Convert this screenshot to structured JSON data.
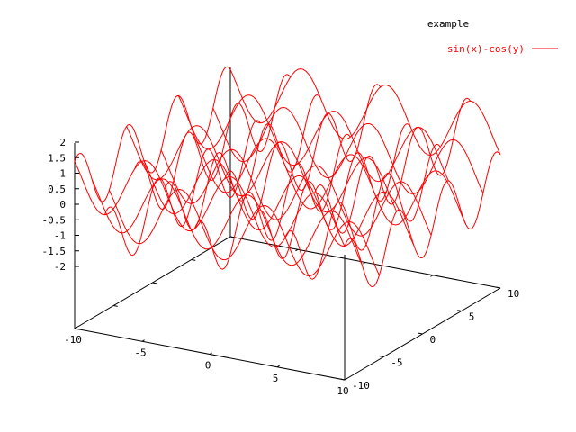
{
  "chart_data": {
    "type": "surface",
    "title": "example",
    "function": "sin(x)-cos(y)",
    "series": [
      {
        "name": "sin(x)-cos(y)",
        "color": "#ff0000"
      }
    ],
    "xlim": [
      -10,
      10
    ],
    "ylim": [
      -10,
      10
    ],
    "zlim": [
      -2,
      2
    ],
    "x_ticks": [
      "-10",
      "-5",
      "0",
      "5",
      "10"
    ],
    "y_ticks": [
      "-10",
      "-5",
      "0",
      "5",
      "10"
    ],
    "z_ticks": [
      "-2",
      "-1.5",
      "-1",
      "-0.5",
      "0",
      "0.5",
      "1",
      "1.5",
      "2"
    ],
    "isosamples": 10,
    "legend_position": "top-right",
    "grid": false
  }
}
